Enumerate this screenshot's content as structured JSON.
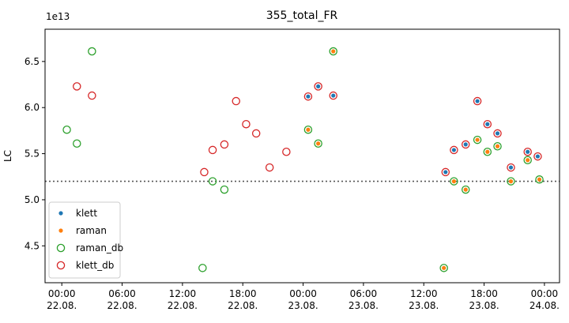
{
  "chart_data": {
    "type": "scatter",
    "title": "355_total_FR",
    "ylabel": "LC",
    "xlabel": "",
    "y_offset_label": "1e13",
    "y_ticks": [
      "4.5",
      "5.0",
      "5.5",
      "6.0",
      "6.5"
    ],
    "y_tick_values": [
      4.5,
      5.0,
      5.5,
      6.0,
      6.5
    ],
    "ylim": [
      4.1,
      6.85
    ],
    "xlim": [
      "2022-08-21 22:20",
      "2022-08-24 01:30"
    ],
    "x_ticks": [
      {
        "t": "2022-08-22 00:00",
        "time": "00:00",
        "date": "22.08."
      },
      {
        "t": "2022-08-22 06:00",
        "time": "06:00",
        "date": "22.08."
      },
      {
        "t": "2022-08-22 12:00",
        "time": "12:00",
        "date": "22.08."
      },
      {
        "t": "2022-08-22 18:00",
        "time": "18:00",
        "date": "22.08."
      },
      {
        "t": "2022-08-23 00:00",
        "time": "00:00",
        "date": "23.08."
      },
      {
        "t": "2022-08-23 06:00",
        "time": "06:00",
        "date": "23.08."
      },
      {
        "t": "2022-08-23 12:00",
        "time": "12:00",
        "date": "23.08."
      },
      {
        "t": "2022-08-23 18:00",
        "time": "18:00",
        "date": "23.08."
      },
      {
        "t": "2022-08-24 00:00",
        "time": "00:00",
        "date": "24.08."
      }
    ],
    "reference_line": 5.2,
    "legend_position": "lower-left",
    "series": [
      {
        "name": "klett",
        "style": "filled-dot",
        "color": "#1f77b4",
        "points": [
          {
            "t": "2022-08-23 00:30",
            "y": 6.12
          },
          {
            "t": "2022-08-23 01:30",
            "y": 6.23
          },
          {
            "t": "2022-08-23 03:00",
            "y": 6.13
          },
          {
            "t": "2022-08-23 14:10",
            "y": 5.3
          },
          {
            "t": "2022-08-23 15:00",
            "y": 5.54
          },
          {
            "t": "2022-08-23 16:10",
            "y": 5.6
          },
          {
            "t": "2022-08-23 17:20",
            "y": 6.07
          },
          {
            "t": "2022-08-23 18:20",
            "y": 5.82
          },
          {
            "t": "2022-08-23 19:20",
            "y": 5.72
          },
          {
            "t": "2022-08-23 20:40",
            "y": 5.35
          },
          {
            "t": "2022-08-23 22:20",
            "y": 5.52
          },
          {
            "t": "2022-08-23 23:20",
            "y": 5.47
          }
        ]
      },
      {
        "name": "raman",
        "style": "filled-dot",
        "color": "#ff7f0e",
        "points": [
          {
            "t": "2022-08-23 00:30",
            "y": 5.76
          },
          {
            "t": "2022-08-23 01:30",
            "y": 5.61
          },
          {
            "t": "2022-08-23 03:00",
            "y": 6.61
          },
          {
            "t": "2022-08-23 14:00",
            "y": 4.26
          },
          {
            "t": "2022-08-23 15:00",
            "y": 5.2
          },
          {
            "t": "2022-08-23 16:10",
            "y": 5.11
          },
          {
            "t": "2022-08-23 17:20",
            "y": 5.65
          },
          {
            "t": "2022-08-23 18:20",
            "y": 5.52
          },
          {
            "t": "2022-08-23 19:20",
            "y": 5.58
          },
          {
            "t": "2022-08-23 20:40",
            "y": 5.2
          },
          {
            "t": "2022-08-23 22:20",
            "y": 5.43
          },
          {
            "t": "2022-08-23 23:30",
            "y": 5.22
          }
        ]
      },
      {
        "name": "raman_db",
        "style": "hollow-circle",
        "color": "#2ca02c",
        "points": [
          {
            "t": "2022-08-22 00:30",
            "y": 5.76
          },
          {
            "t": "2022-08-22 01:30",
            "y": 5.61
          },
          {
            "t": "2022-08-22 03:00",
            "y": 6.61
          },
          {
            "t": "2022-08-22 14:00",
            "y": 4.26
          },
          {
            "t": "2022-08-22 15:00",
            "y": 5.2
          },
          {
            "t": "2022-08-22 16:10",
            "y": 5.11
          },
          {
            "t": "2022-08-23 00:30",
            "y": 5.76
          },
          {
            "t": "2022-08-23 01:30",
            "y": 5.61
          },
          {
            "t": "2022-08-23 03:00",
            "y": 6.61
          },
          {
            "t": "2022-08-23 14:00",
            "y": 4.26
          },
          {
            "t": "2022-08-23 15:00",
            "y": 5.2
          },
          {
            "t": "2022-08-23 16:10",
            "y": 5.11
          },
          {
            "t": "2022-08-23 17:20",
            "y": 5.65
          },
          {
            "t": "2022-08-23 18:20",
            "y": 5.52
          },
          {
            "t": "2022-08-23 19:20",
            "y": 5.58
          },
          {
            "t": "2022-08-23 20:40",
            "y": 5.2
          },
          {
            "t": "2022-08-23 22:20",
            "y": 5.43
          },
          {
            "t": "2022-08-23 23:30",
            "y": 5.22
          }
        ]
      },
      {
        "name": "klett_db",
        "style": "hollow-circle",
        "color": "#d62728",
        "points": [
          {
            "t": "2022-08-22 01:30",
            "y": 6.23
          },
          {
            "t": "2022-08-22 03:00",
            "y": 6.13
          },
          {
            "t": "2022-08-22 14:10",
            "y": 5.3
          },
          {
            "t": "2022-08-22 15:00",
            "y": 5.54
          },
          {
            "t": "2022-08-22 16:10",
            "y": 5.6
          },
          {
            "t": "2022-08-22 17:20",
            "y": 6.07
          },
          {
            "t": "2022-08-22 18:20",
            "y": 5.82
          },
          {
            "t": "2022-08-22 19:20",
            "y": 5.72
          },
          {
            "t": "2022-08-22 20:40",
            "y": 5.35
          },
          {
            "t": "2022-08-22 22:20",
            "y": 5.52
          },
          {
            "t": "2022-08-23 00:30",
            "y": 6.12
          },
          {
            "t": "2022-08-23 01:30",
            "y": 6.23
          },
          {
            "t": "2022-08-23 03:00",
            "y": 6.13
          },
          {
            "t": "2022-08-23 14:10",
            "y": 5.3
          },
          {
            "t": "2022-08-23 15:00",
            "y": 5.54
          },
          {
            "t": "2022-08-23 16:10",
            "y": 5.6
          },
          {
            "t": "2022-08-23 17:20",
            "y": 6.07
          },
          {
            "t": "2022-08-23 18:20",
            "y": 5.82
          },
          {
            "t": "2022-08-23 19:20",
            "y": 5.72
          },
          {
            "t": "2022-08-23 20:40",
            "y": 5.35
          },
          {
            "t": "2022-08-23 22:20",
            "y": 5.52
          },
          {
            "t": "2022-08-23 23:20",
            "y": 5.47
          }
        ]
      }
    ]
  }
}
